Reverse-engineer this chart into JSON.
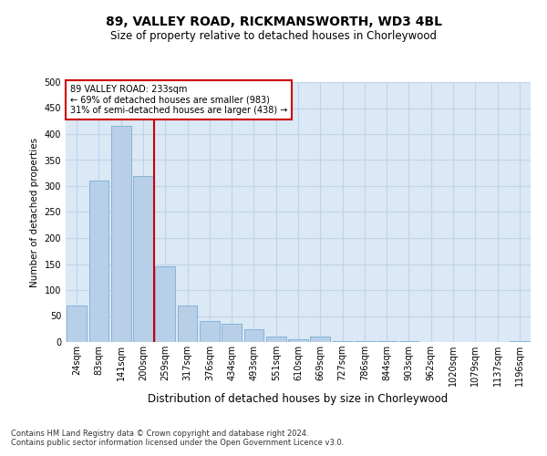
{
  "title": "89, VALLEY ROAD, RICKMANSWORTH, WD3 4BL",
  "subtitle": "Size of property relative to detached houses in Chorleywood",
  "xlabel": "Distribution of detached houses by size in Chorleywood",
  "ylabel": "Number of detached properties",
  "categories": [
    "24sqm",
    "83sqm",
    "141sqm",
    "200sqm",
    "259sqm",
    "317sqm",
    "376sqm",
    "434sqm",
    "493sqm",
    "551sqm",
    "610sqm",
    "669sqm",
    "727sqm",
    "786sqm",
    "844sqm",
    "903sqm",
    "962sqm",
    "1020sqm",
    "1079sqm",
    "1137sqm",
    "1196sqm"
  ],
  "values": [
    70,
    310,
    415,
    320,
    145,
    70,
    40,
    35,
    25,
    10,
    5,
    10,
    2,
    2,
    2,
    2,
    0,
    0,
    0,
    0,
    2
  ],
  "bar_color": "#b8cfe8",
  "bar_edge_color": "#7aadd4",
  "vline_color": "#cc0000",
  "vline_pos": 3.5,
  "annotation_line1": "89 VALLEY ROAD: 233sqm",
  "annotation_line2": "← 69% of detached houses are smaller (983)",
  "annotation_line3": "31% of semi-detached houses are larger (438) →",
  "annotation_box_facecolor": "#ffffff",
  "annotation_box_edgecolor": "#cc0000",
  "ylim": [
    0,
    500
  ],
  "yticks": [
    0,
    50,
    100,
    150,
    200,
    250,
    300,
    350,
    400,
    450,
    500
  ],
  "grid_color": "#c0d4e8",
  "bg_color": "#dbe8f5",
  "footer_line1": "Contains HM Land Registry data © Crown copyright and database right 2024.",
  "footer_line2": "Contains public sector information licensed under the Open Government Licence v3.0.",
  "title_fontsize": 10,
  "subtitle_fontsize": 8.5,
  "xlabel_fontsize": 8.5,
  "ylabel_fontsize": 7.5,
  "tick_fontsize": 7,
  "annotation_fontsize": 7,
  "footer_fontsize": 6
}
